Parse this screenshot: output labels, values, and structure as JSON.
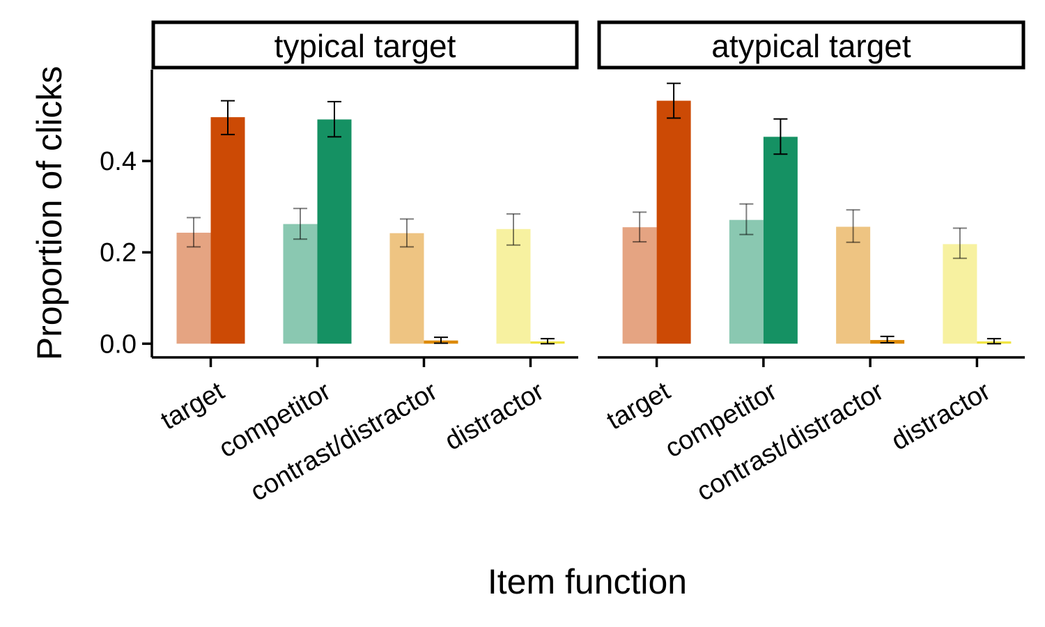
{
  "chart_data": {
    "type": "bar",
    "xlabel": "Item function",
    "ylabel": "Proportion of clicks",
    "ylim": [
      -0.03,
      0.6
    ],
    "yticks": [
      0.0,
      0.2,
      0.4
    ],
    "ytick_labels": [
      "0.0",
      "0.2",
      "0.4"
    ],
    "grid": false,
    "legend": "none",
    "categories": [
      "target",
      "competitor",
      "contrast/distractor",
      "distractor"
    ],
    "category_colors": [
      "#CC4A05",
      "#159163",
      "#DD8A06",
      "#F0E442"
    ],
    "faded_opacity": 0.5,
    "panels": [
      {
        "label": "typical target",
        "bars": [
          {
            "category": "target",
            "faded": {
              "value": 0.243,
              "lo": 0.212,
              "hi": 0.276
            },
            "solid": {
              "value": 0.496,
              "lo": 0.458,
              "hi": 0.532
            }
          },
          {
            "category": "competitor",
            "faded": {
              "value": 0.262,
              "lo": 0.229,
              "hi": 0.296
            },
            "solid": {
              "value": 0.491,
              "lo": 0.453,
              "hi": 0.53
            }
          },
          {
            "category": "contrast/distractor",
            "faded": {
              "value": 0.242,
              "lo": 0.212,
              "hi": 0.273
            },
            "solid": {
              "value": 0.007,
              "lo": 0.001,
              "hi": 0.014
            }
          },
          {
            "category": "distractor",
            "faded": {
              "value": 0.251,
              "lo": 0.216,
              "hi": 0.284
            },
            "solid": {
              "value": 0.005,
              "lo": 0.0,
              "hi": 0.011
            }
          }
        ]
      },
      {
        "label": "atypical target",
        "bars": [
          {
            "category": "target",
            "faded": {
              "value": 0.255,
              "lo": 0.223,
              "hi": 0.288
            },
            "solid": {
              "value": 0.532,
              "lo": 0.494,
              "hi": 0.57
            }
          },
          {
            "category": "competitor",
            "faded": {
              "value": 0.271,
              "lo": 0.239,
              "hi": 0.306
            },
            "solid": {
              "value": 0.453,
              "lo": 0.415,
              "hi": 0.492
            }
          },
          {
            "category": "contrast/distractor",
            "faded": {
              "value": 0.256,
              "lo": 0.222,
              "hi": 0.293
            },
            "solid": {
              "value": 0.008,
              "lo": 0.002,
              "hi": 0.016
            }
          },
          {
            "category": "distractor",
            "faded": {
              "value": 0.218,
              "lo": 0.187,
              "hi": 0.253
            },
            "solid": {
              "value": 0.005,
              "lo": 0.0,
              "hi": 0.011
            }
          }
        ]
      }
    ]
  }
}
